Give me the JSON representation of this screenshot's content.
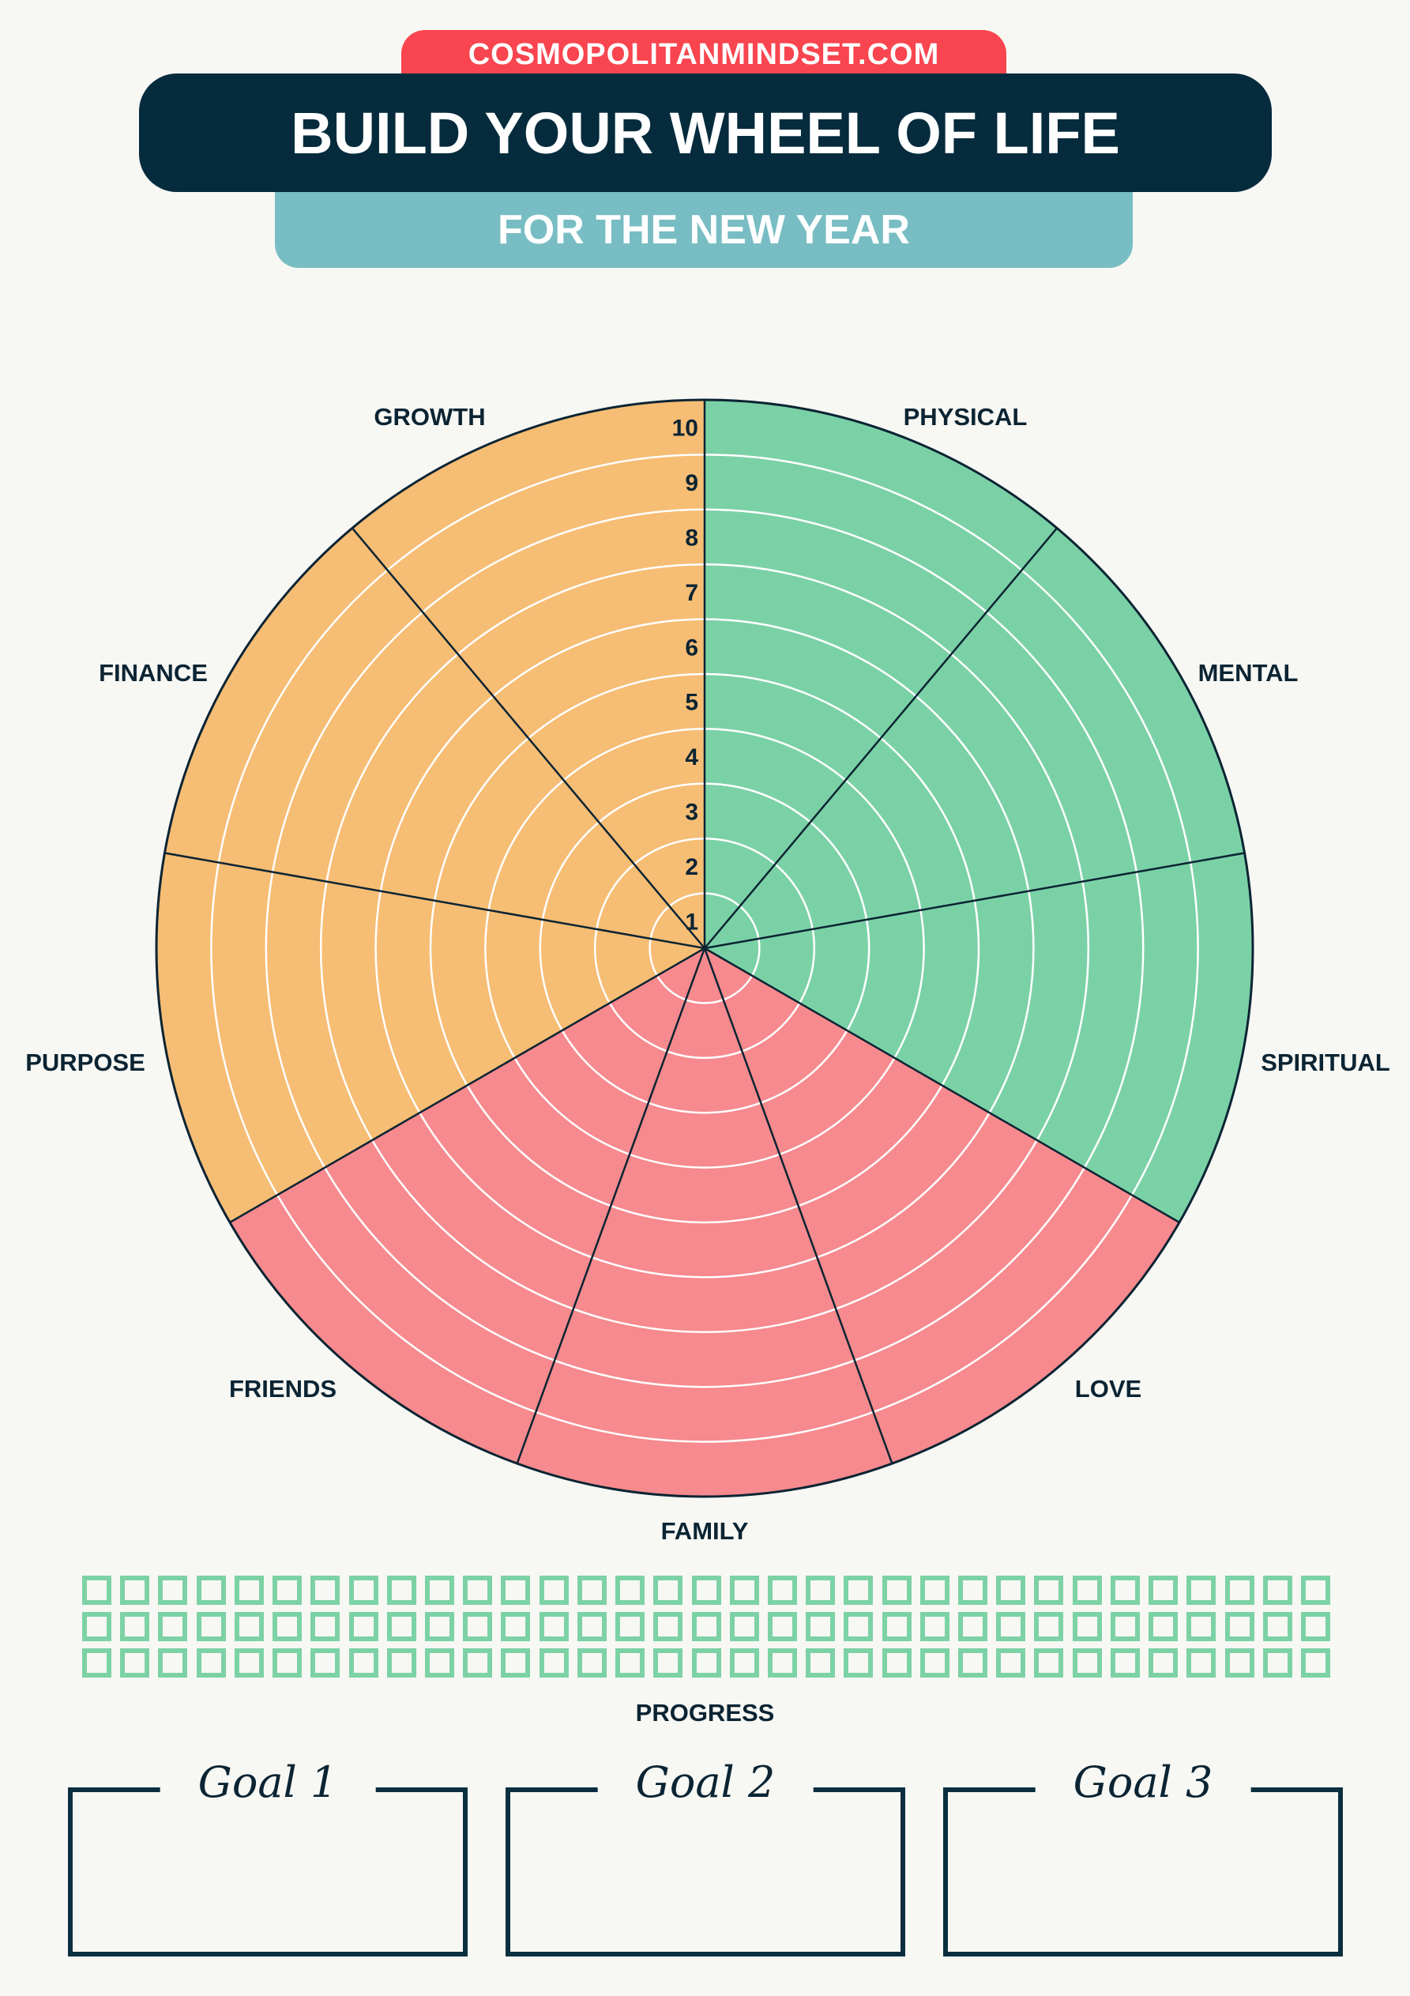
{
  "header": {
    "site": "COSMOPOLITANMINDSET.COM",
    "title": "BUILD YOUR WHEEL OF LIFE",
    "subtitle": "FOR THE NEW YEAR"
  },
  "wheel": {
    "levels": [
      "1",
      "2",
      "3",
      "4",
      "5",
      "6",
      "7",
      "8",
      "9",
      "10"
    ],
    "segments": [
      {
        "label": "PHYSICAL",
        "color": "#7bd1a6"
      },
      {
        "label": "MENTAL",
        "color": "#7bd1a6"
      },
      {
        "label": "SPIRITUAL",
        "color": "#7bd1a6"
      },
      {
        "label": "LOVE",
        "color": "#f68a8e"
      },
      {
        "label": "FAMILY",
        "color": "#f68a8e"
      },
      {
        "label": "FRIENDS",
        "color": "#f68a8e"
      },
      {
        "label": "PURPOSE",
        "color": "#f6bd74"
      },
      {
        "label": "FINANCE",
        "color": "#f6bd74"
      },
      {
        "label": "GROWTH",
        "color": "#f6bd74"
      }
    ]
  },
  "progress": {
    "label": "PROGRESS",
    "rows": 3,
    "boxes_per_row": 33,
    "box_color": "#7cd2a5"
  },
  "goals": [
    "Goal 1",
    "Goal 2",
    "Goal 3"
  ]
}
